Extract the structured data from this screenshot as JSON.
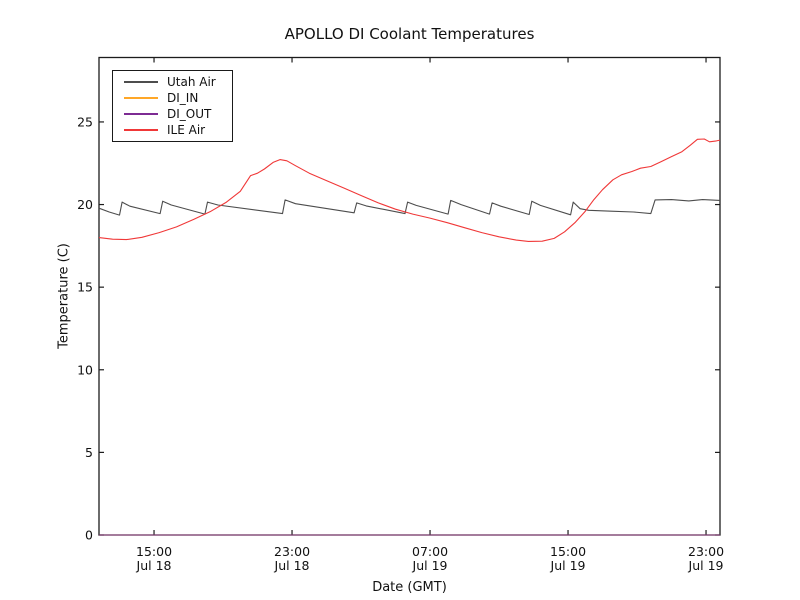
{
  "chart_data": {
    "type": "line",
    "title": "APOLLO DI Coolant Temperatures",
    "xlabel": "Date (GMT)",
    "ylabel": "Temperature (C)",
    "x_unit": "hours since Jul 18 00:00 GMT",
    "xlim": [
      11.81,
      47.81
    ],
    "ylim": [
      0,
      28.9
    ],
    "grid": false,
    "legend_position": "upper left",
    "yticks": [
      {
        "value": 0,
        "label": "0"
      },
      {
        "value": 5,
        "label": "5"
      },
      {
        "value": 10,
        "label": "10"
      },
      {
        "value": 15,
        "label": "15"
      },
      {
        "value": 20,
        "label": "20"
      },
      {
        "value": 25,
        "label": "25"
      }
    ],
    "xticks": [
      {
        "t": 15,
        "time": "15:00",
        "date": "Jul 18"
      },
      {
        "t": 23,
        "time": "23:00",
        "date": "Jul 18"
      },
      {
        "t": 31,
        "time": "07:00",
        "date": "Jul 19"
      },
      {
        "t": 39,
        "time": "15:00",
        "date": "Jul 19"
      },
      {
        "t": 47,
        "time": "23:00",
        "date": "Jul 19"
      }
    ],
    "series": [
      {
        "name": "Utah Air",
        "color": "#4d4d4d",
        "opacity": 1,
        "points": [
          [
            11.81,
            19.78
          ],
          [
            12.4,
            19.55
          ],
          [
            13.0,
            19.36
          ],
          [
            13.15,
            20.15
          ],
          [
            13.6,
            19.9
          ],
          [
            15.35,
            19.45
          ],
          [
            15.5,
            20.2
          ],
          [
            16.0,
            19.97
          ],
          [
            17.95,
            19.42
          ],
          [
            18.1,
            20.15
          ],
          [
            18.7,
            19.97
          ],
          [
            22.45,
            19.45
          ],
          [
            22.6,
            20.28
          ],
          [
            23.2,
            20.05
          ],
          [
            26.6,
            19.5
          ],
          [
            26.75,
            20.1
          ],
          [
            27.3,
            19.92
          ],
          [
            29.55,
            19.45
          ],
          [
            29.7,
            20.15
          ],
          [
            30.2,
            19.95
          ],
          [
            32.05,
            19.42
          ],
          [
            32.2,
            20.25
          ],
          [
            32.8,
            20.0
          ],
          [
            34.45,
            19.42
          ],
          [
            34.6,
            20.1
          ],
          [
            35.1,
            19.9
          ],
          [
            36.75,
            19.4
          ],
          [
            36.9,
            20.2
          ],
          [
            37.4,
            19.95
          ],
          [
            39.15,
            19.38
          ],
          [
            39.3,
            20.15
          ],
          [
            39.7,
            19.75
          ],
          [
            40.2,
            19.65
          ],
          [
            41.5,
            19.6
          ],
          [
            42.8,
            19.55
          ],
          [
            43.8,
            19.45
          ],
          [
            44.05,
            20.28
          ],
          [
            45.0,
            20.3
          ],
          [
            46.0,
            20.22
          ],
          [
            46.8,
            20.3
          ],
          [
            47.81,
            20.25
          ]
        ]
      },
      {
        "name": "DI_IN",
        "color": "#ffa728",
        "opacity": 0.8,
        "points": [
          [
            11.81,
            0
          ],
          [
            47.81,
            0
          ]
        ]
      },
      {
        "name": "DI_OUT",
        "color": "#7d2b93",
        "opacity": 0.8,
        "points": [
          [
            11.81,
            0
          ],
          [
            47.81,
            0
          ]
        ]
      },
      {
        "name": "ILE Air",
        "color": "#f03838",
        "opacity": 1,
        "points": [
          [
            11.81,
            18.0
          ],
          [
            12.6,
            17.9
          ],
          [
            13.4,
            17.88
          ],
          [
            14.3,
            18.02
          ],
          [
            15.3,
            18.3
          ],
          [
            16.3,
            18.65
          ],
          [
            17.3,
            19.1
          ],
          [
            18.3,
            19.6
          ],
          [
            19.2,
            20.15
          ],
          [
            20.0,
            20.8
          ],
          [
            20.6,
            21.75
          ],
          [
            21.0,
            21.9
          ],
          [
            21.4,
            22.15
          ],
          [
            21.9,
            22.55
          ],
          [
            22.3,
            22.72
          ],
          [
            22.7,
            22.65
          ],
          [
            23.2,
            22.35
          ],
          [
            24.0,
            21.9
          ],
          [
            25.0,
            21.45
          ],
          [
            26.0,
            21.0
          ],
          [
            27.0,
            20.55
          ],
          [
            28.0,
            20.1
          ],
          [
            29.0,
            19.72
          ],
          [
            30.0,
            19.42
          ],
          [
            31.0,
            19.18
          ],
          [
            32.0,
            18.9
          ],
          [
            33.0,
            18.6
          ],
          [
            34.0,
            18.3
          ],
          [
            35.0,
            18.05
          ],
          [
            36.0,
            17.85
          ],
          [
            36.7,
            17.77
          ],
          [
            37.5,
            17.78
          ],
          [
            38.2,
            17.95
          ],
          [
            38.8,
            18.35
          ],
          [
            39.4,
            18.9
          ],
          [
            40.0,
            19.6
          ],
          [
            40.5,
            20.3
          ],
          [
            41.0,
            20.9
          ],
          [
            41.6,
            21.5
          ],
          [
            42.1,
            21.8
          ],
          [
            42.7,
            22.0
          ],
          [
            43.2,
            22.2
          ],
          [
            43.8,
            22.3
          ],
          [
            44.4,
            22.6
          ],
          [
            45.0,
            22.9
          ],
          [
            45.6,
            23.2
          ],
          [
            46.1,
            23.6
          ],
          [
            46.5,
            23.95
          ],
          [
            46.9,
            23.97
          ],
          [
            47.2,
            23.8
          ],
          [
            47.6,
            23.85
          ],
          [
            47.81,
            23.9
          ]
        ]
      }
    ]
  }
}
